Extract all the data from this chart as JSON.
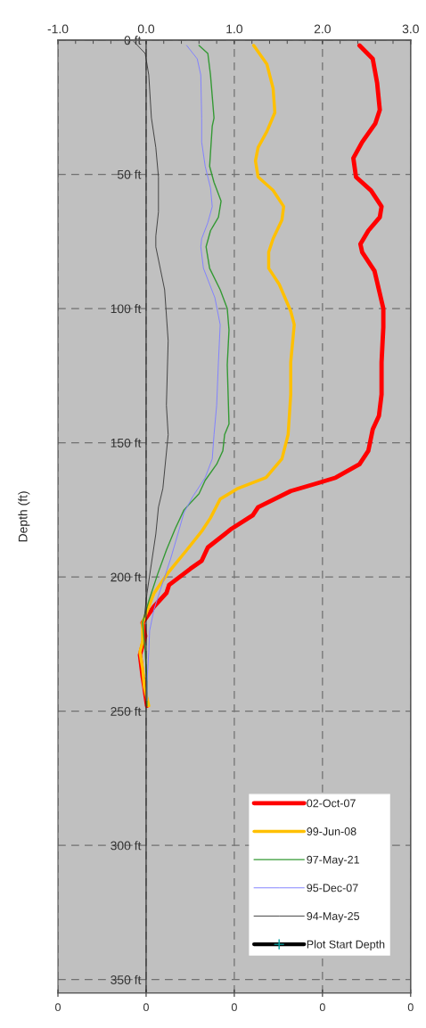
{
  "chart_data": {
    "type": "line",
    "ylabel": "Depth (ft)",
    "xlim": [
      -1,
      3
    ],
    "xticks": [
      {
        "value": -1,
        "label": "-1.0"
      },
      {
        "value": 0,
        "label": "0.0"
      },
      {
        "value": 1,
        "label": "1.0"
      },
      {
        "value": 2,
        "label": "2.0"
      },
      {
        "value": 3,
        "label": "3.0"
      }
    ],
    "annotations": [
      "0",
      "0",
      "0",
      "0",
      "0"
    ],
    "ylim": [
      355,
      0
    ],
    "yticks": [
      {
        "value": 0,
        "label": "0 ft"
      },
      {
        "value": 50,
        "label": "50 ft"
      },
      {
        "value": 100,
        "label": "100 ft"
      },
      {
        "value": 150,
        "label": "150 ft"
      },
      {
        "value": 200,
        "label": "200 ft"
      },
      {
        "value": 250,
        "label": "250 ft"
      },
      {
        "value": 300,
        "label": "300 ft"
      },
      {
        "value": 350,
        "label": "350 ft"
      }
    ],
    "grid": true,
    "legend": "bottom right",
    "line_style": "solid",
    "marker": "none",
    "series": [
      {
        "name": "02-Oct-07",
        "color": "#ff0000",
        "x": [
          2.42,
          2.57,
          2.62,
          2.65,
          2.6,
          2.45,
          2.35,
          2.38,
          2.55,
          2.67,
          2.65,
          2.52,
          2.43,
          2.45,
          2.59,
          2.69,
          2.69,
          2.67,
          2.67,
          2.64,
          2.57,
          2.52,
          2.42,
          2.15,
          1.95,
          1.64,
          1.27,
          1.21,
          0.97,
          0.7,
          0.63,
          0.5,
          0.26,
          0.23,
          0.09,
          -0.04,
          -0.01,
          -0.07,
          -0.04,
          -0.02,
          0.01
        ],
        "values": [
          2,
          7,
          16,
          26,
          31,
          38,
          44,
          51,
          56,
          62,
          66,
          71,
          76,
          79,
          86,
          100,
          107,
          120,
          132,
          140,
          145,
          153,
          158,
          163,
          165,
          168,
          174,
          177,
          182,
          189,
          194,
          197,
          203,
          206,
          211,
          217,
          222,
          229,
          237,
          241,
          248
        ]
      },
      {
        "name": "99-Jun-08",
        "color": "#ffc000",
        "x": [
          1.22,
          1.37,
          1.44,
          1.46,
          1.37,
          1.27,
          1.24,
          1.27,
          1.44,
          1.56,
          1.54,
          1.44,
          1.39,
          1.39,
          1.51,
          1.64,
          1.68,
          1.64,
          1.64,
          1.61,
          1.54,
          1.36,
          1.04,
          0.84,
          0.73,
          0.63,
          0.46,
          0.26,
          0.09,
          -0.04,
          -0.04,
          -0.07,
          -0.04,
          -0.02,
          0.03
        ],
        "values": [
          2,
          9,
          18,
          27,
          34,
          40,
          45,
          51,
          56,
          62,
          67,
          74,
          79,
          85,
          91,
          101,
          106,
          120,
          132,
          147,
          156,
          163,
          167,
          171,
          178,
          183,
          190,
          198,
          206,
          217,
          224,
          228,
          234,
          241,
          248
        ]
      },
      {
        "name": "97-May-21",
        "color": "#339933",
        "x": [
          0.6,
          0.7,
          0.73,
          0.77,
          0.75,
          0.72,
          0.77,
          0.85,
          0.82,
          0.73,
          0.68,
          0.72,
          0.84,
          0.92,
          0.94,
          0.92,
          0.94,
          0.89,
          0.87,
          0.8,
          0.67,
          0.6,
          0.43,
          0.33,
          0.23,
          0.13,
          0.03,
          -0.04,
          -0.01,
          0.01,
          0.01
        ],
        "values": [
          2,
          5,
          13,
          29,
          32,
          47,
          53,
          60,
          66,
          71,
          77,
          85,
          93,
          100,
          108,
          121,
          143,
          147,
          153,
          158,
          164,
          169,
          175,
          182,
          190,
          199,
          209,
          217,
          228,
          239,
          248
        ]
      },
      {
        "name": "95-Dec-07",
        "color": "#8080ff",
        "x": [
          0.46,
          0.58,
          0.62,
          0.63,
          0.63,
          0.67,
          0.73,
          0.75,
          0.7,
          0.63,
          0.62,
          0.65,
          0.78,
          0.84,
          0.82,
          0.8,
          0.77,
          0.75,
          0.67,
          0.53,
          0.43,
          0.36,
          0.28,
          0.19,
          0.09,
          0.04,
          0.03,
          0.01,
          0.01
        ],
        "values": [
          2,
          7,
          13,
          29,
          38,
          47,
          55,
          62,
          68,
          74,
          77,
          85,
          96,
          106,
          120,
          136,
          147,
          156,
          163,
          170,
          176,
          184,
          193,
          202,
          212,
          220,
          228,
          239,
          246
        ]
      },
      {
        "name": "94-May-25",
        "color": "#404040",
        "x": [
          -0.14,
          -0.01,
          0.03,
          0.06,
          0.11,
          0.14,
          0.14,
          0.11,
          0.11,
          0.21,
          0.25,
          0.23,
          0.25,
          0.19,
          0.14,
          0.11,
          0.06,
          0.01,
          -0.02
        ],
        "values": [
          0.5,
          5,
          13,
          29,
          40,
          51,
          64,
          73,
          77,
          93,
          112,
          136,
          147,
          167,
          174,
          184,
          195,
          206,
          215
        ]
      },
      {
        "name": "Plot Start Depth",
        "color": "#000000",
        "marker": "cross"
      }
    ]
  }
}
